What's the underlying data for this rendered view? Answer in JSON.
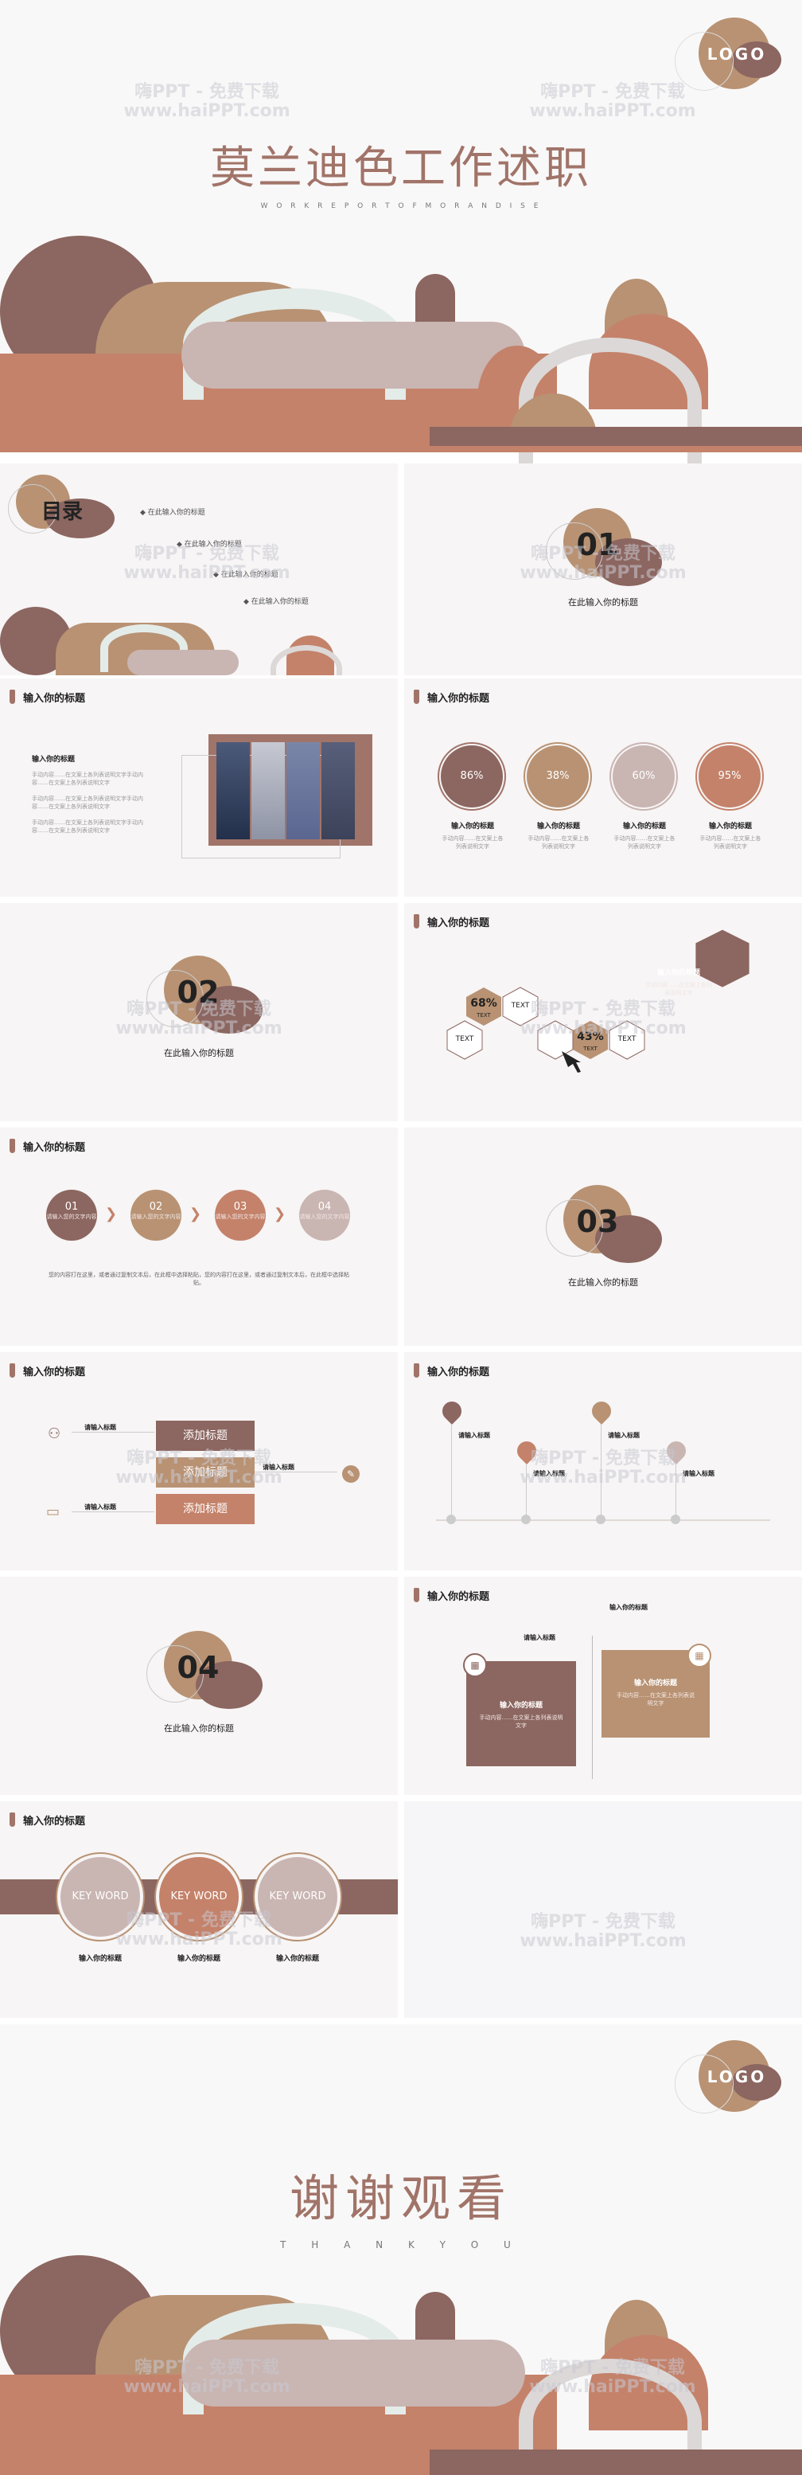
{
  "colors": {
    "mauve": "#a17469",
    "mauve_dark": "#8c6660",
    "tan": "#b89273",
    "terracotta": "#c4826a",
    "dusty_pink": "#c9b5b2",
    "bg": "#f7f5f5"
  },
  "watermark": {
    "line1": "嗨PPT - 免费下载",
    "line2": "www.haiPPT.com"
  },
  "cover": {
    "logo": "LOGO",
    "title": "莫兰迪色工作述职",
    "subtitle": "W O R K   R E P O R T   O F   M O R A N D I S E"
  },
  "toc": {
    "title": "目录",
    "items": [
      "在此输入你的标题",
      "在此输入你的标题",
      "在此输入你的标题",
      "在此输入你的标题"
    ]
  },
  "section1": {
    "num": "01",
    "label": "在此输入你的标题"
  },
  "section2": {
    "num": "02",
    "label": "在此输入你的标题"
  },
  "section3": {
    "num": "03",
    "label": "在此输入你的标题"
  },
  "section4": {
    "num": "04",
    "label": "在此输入你的标题"
  },
  "header": "输入你的标题",
  "s3": {
    "heading": "输入你的标题",
    "lines": [
      "手动内容……在文案上各列表说明文字手动内容……在文案上各列表说明文字",
      "手动内容……在文案上各列表说明文字手动内容……在文案上各列表说明文字",
      "手动内容……在文案上各列表说明文字手动内容……在文案上各列表说明文字"
    ]
  },
  "s4": {
    "items": [
      {
        "pct": "86%",
        "title": "输入你的标题",
        "desc": "手动内容……在文案上各列表说明文字"
      },
      {
        "pct": "38%",
        "title": "输入你的标题",
        "desc": "手动内容……在文案上各列表说明文字"
      },
      {
        "pct": "60%",
        "title": "输入你的标题",
        "desc": "手动内容……在文案上各列表说明文字"
      },
      {
        "pct": "95%",
        "title": "输入你的标题",
        "desc": "手动内容……在文案上各列表说明文字"
      }
    ]
  },
  "s6": {
    "hex_title": "输入你的标题",
    "hex_desc": "手动内容……在文案上各列表说明文字",
    "p1": "68%",
    "p1_sub": "TEXT",
    "p2": "43%",
    "p2_sub": "TEXT",
    "t1": "TEXT",
    "t2": "TEXT",
    "t3": "TEXT"
  },
  "s7": {
    "steps": [
      {
        "num": "01",
        "desc": "请输入您的文字内容"
      },
      {
        "num": "02",
        "desc": "请输入您的文字内容"
      },
      {
        "num": "03",
        "desc": "请输入您的文字内容"
      },
      {
        "num": "04",
        "desc": "请输入您的文字内容"
      }
    ],
    "para": "您的内容打在这里，或者通过复制文本后，在此框中选择粘贴，您的内容打在这里，或者通过复制文本后，在此框中选择粘贴。"
  },
  "s9": {
    "left1": "请输入标题",
    "left2": "请输入标题",
    "right1": "请输入标题",
    "bars": [
      "添加标题",
      "添加标题",
      "添加标题"
    ]
  },
  "s10": {
    "items": [
      "请输入标题",
      "请输入标题",
      "请输入标题",
      "请输入标题"
    ]
  },
  "s12": {
    "top": "输入你的标题",
    "mid": "请输入标题",
    "box1_title": "输入你的标题",
    "box2_title": "输入你的标题",
    "box_desc": "手动内容……在文案上各列表说明文字"
  },
  "s13": {
    "keys": [
      "KEY WORD",
      "KEY WORD",
      "KEY WORD"
    ],
    "titles": [
      "输入你的标题",
      "输入你的标题",
      "输入你的标题"
    ]
  },
  "end": {
    "logo": "LOGO",
    "title": "谢谢观看",
    "subtitle": "T H A N K     Y O U"
  }
}
